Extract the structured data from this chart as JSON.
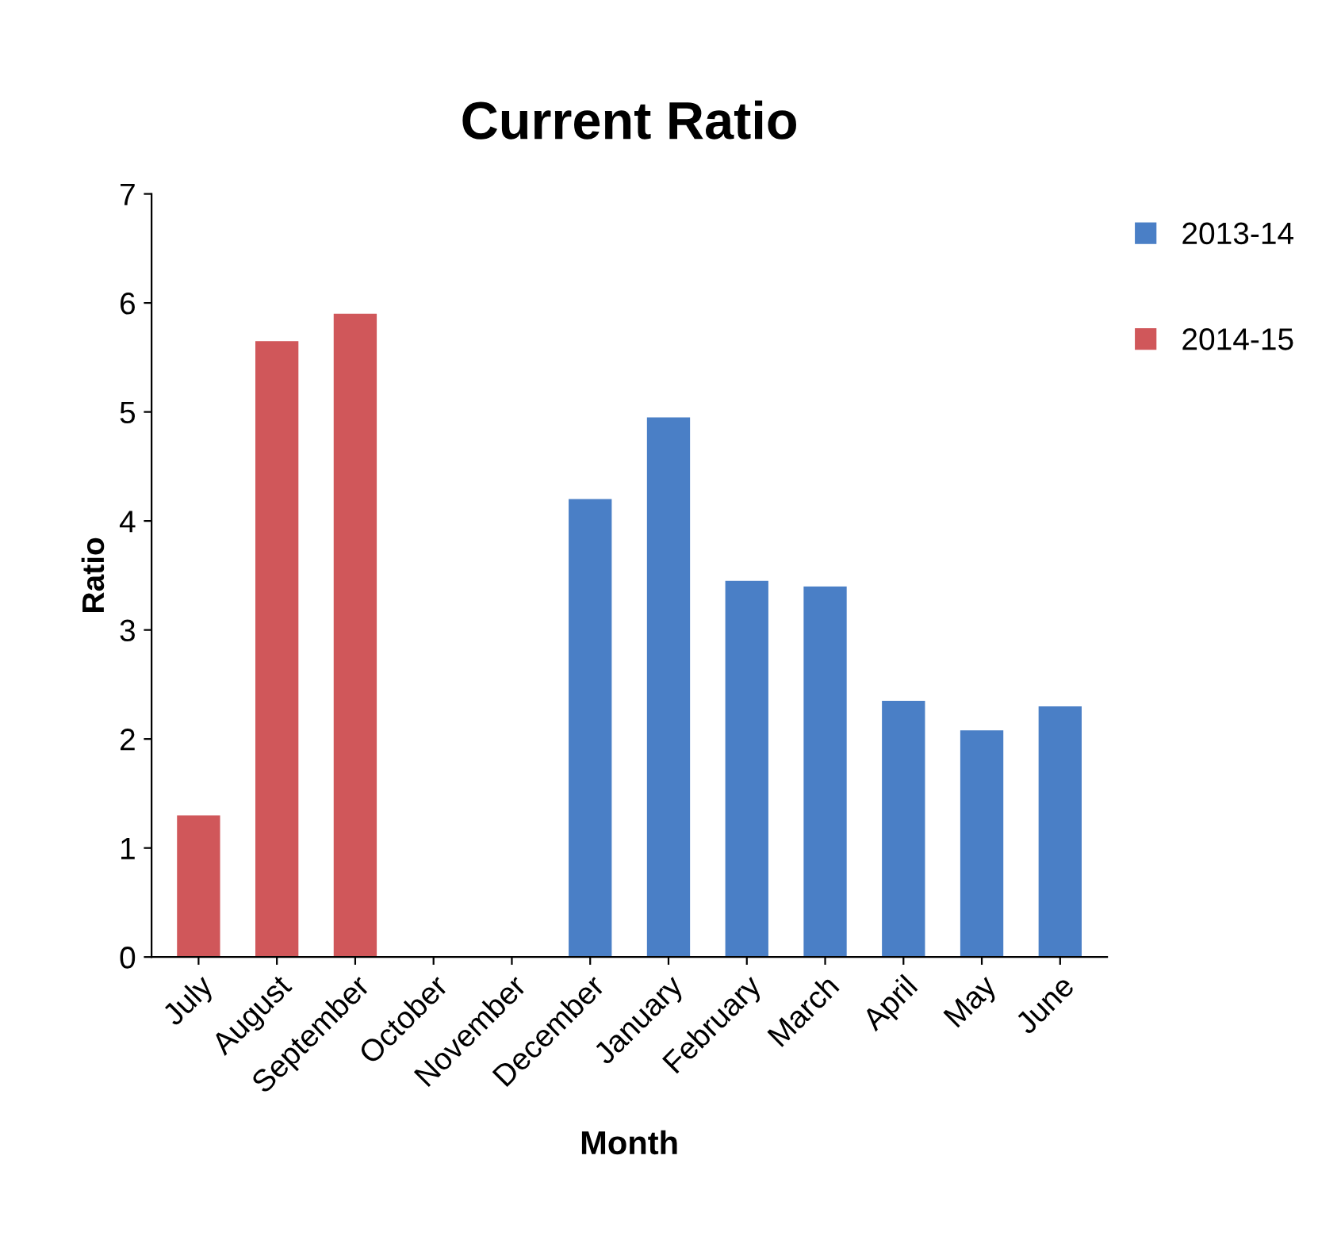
{
  "chart_data": {
    "type": "bar",
    "title": "Current Ratio",
    "xlabel": "Month",
    "ylabel": "Ratio",
    "categories": [
      "July",
      "August",
      "September",
      "October",
      "November",
      "December",
      "January",
      "February",
      "March",
      "April",
      "May",
      "June"
    ],
    "series": [
      {
        "name": "2013-14",
        "color": "#4a7fc6",
        "values": [
          null,
          null,
          null,
          null,
          null,
          4.2,
          4.95,
          3.45,
          3.4,
          2.35,
          2.08,
          2.3
        ]
      },
      {
        "name": "2014-15",
        "color": "#d0575a",
        "values": [
          1.3,
          5.65,
          5.9,
          null,
          null,
          null,
          null,
          null,
          null,
          null,
          null,
          null
        ]
      }
    ],
    "ylim": [
      0,
      7
    ],
    "yticks": [
      0,
      1,
      2,
      3,
      4,
      5,
      6,
      7
    ],
    "grid": false,
    "legend": "top right"
  }
}
